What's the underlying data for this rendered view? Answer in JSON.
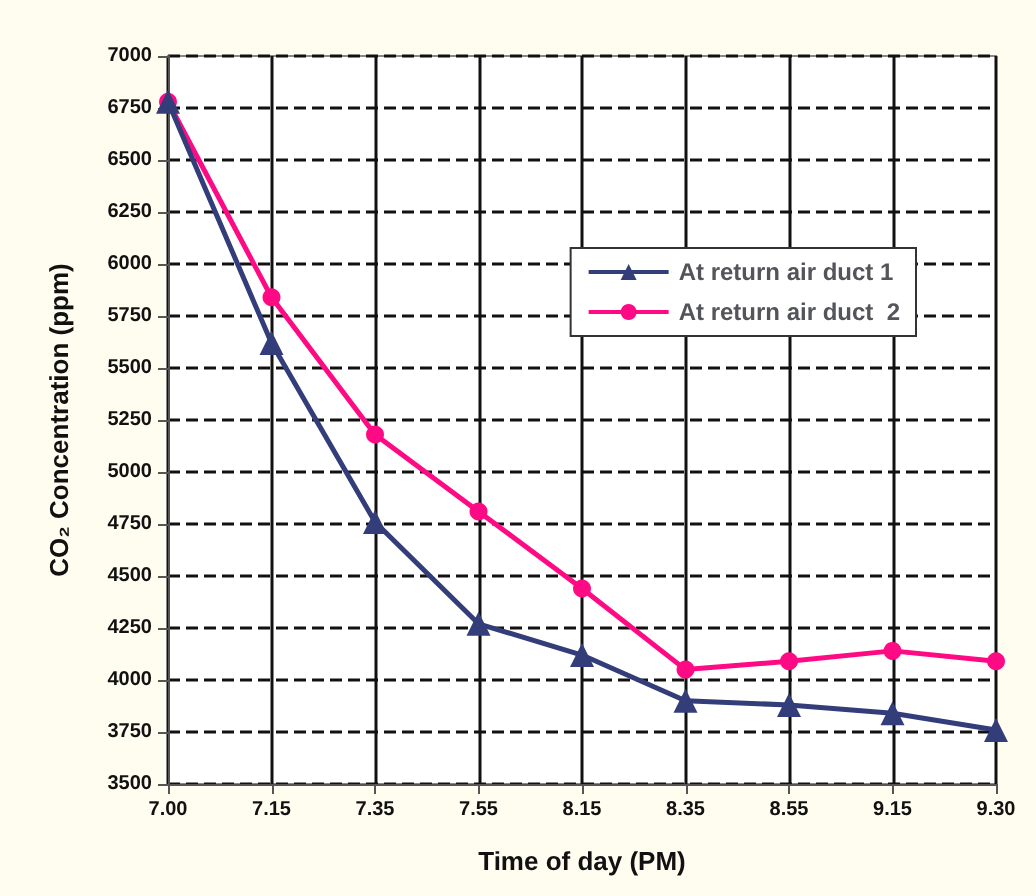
{
  "chart_data": {
    "type": "line",
    "xlabel": "Time of day (PM)",
    "ylabel": "CO₂ Concentration (ppm)",
    "categories": [
      "7.00",
      "7.15",
      "7.35",
      "7.55",
      "8.15",
      "8.35",
      "8.55",
      "9.15",
      "9.30"
    ],
    "series": [
      {
        "name": "At return air duct 1",
        "color": "#333d7a",
        "marker": "triangle",
        "values": [
          6780,
          5620,
          4760,
          4270,
          4120,
          3900,
          3880,
          3840,
          3760
        ]
      },
      {
        "name": "At return air duct  2",
        "color": "#ff0a85",
        "marker": "circle",
        "values": [
          6780,
          5840,
          5180,
          4810,
          4440,
          4050,
          4090,
          4140,
          4090
        ]
      }
    ],
    "ylim": [
      3500,
      7000
    ],
    "yticks": [
      3500,
      3750,
      4000,
      4250,
      4500,
      4750,
      5000,
      5250,
      5500,
      5750,
      6000,
      6250,
      6500,
      6750,
      7000
    ],
    "grid": true,
    "legend": "top right",
    "line_style": "solid"
  }
}
